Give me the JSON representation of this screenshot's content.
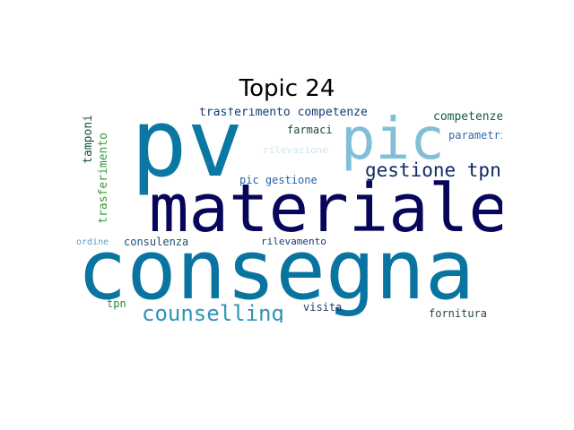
{
  "title": "Topic 24",
  "words": [
    {
      "text": "consegna",
      "color": "#0a74a0"
    },
    {
      "text": "materiale",
      "color": "#07065a"
    },
    {
      "text": "pv",
      "color": "#0b78a4"
    },
    {
      "text": "pic",
      "color": "#82bfd6"
    },
    {
      "text": "gestione tpn",
      "color": "#0f2c63"
    },
    {
      "text": "counselling",
      "color": "#2f93b8"
    },
    {
      "text": "trasferimento competenze",
      "color": "#123a75"
    },
    {
      "text": "competenze",
      "color": "#1b5a3a"
    },
    {
      "text": "parametri",
      "color": "#2d6da8"
    },
    {
      "text": "farmaci",
      "color": "#14493a"
    },
    {
      "text": "rilevazione",
      "color": "#cfe4ee"
    },
    {
      "text": "pic gestione",
      "color": "#2a63a5"
    },
    {
      "text": "consulenza",
      "color": "#244f6e"
    },
    {
      "text": "rilevamento",
      "color": "#163b74"
    },
    {
      "text": "ordine",
      "color": "#5aa0c4"
    },
    {
      "text": "tpn",
      "color": "#2a8a2a"
    },
    {
      "text": "visita",
      "color": "#1d3b6e"
    },
    {
      "text": "fornitura",
      "color": "#2a4a3a"
    },
    {
      "text": "tamponi",
      "color": "#1b4f4a"
    },
    {
      "text": "trasferimento",
      "color": "#3a9a3a"
    }
  ]
}
